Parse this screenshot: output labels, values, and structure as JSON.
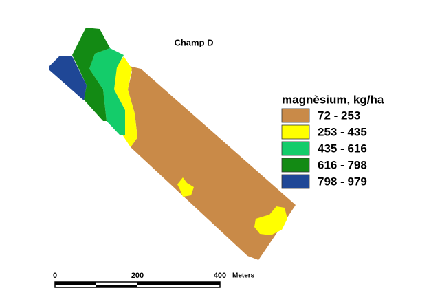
{
  "title": "Champ D",
  "legend": {
    "title": "magnèsium, kg/ha",
    "items": [
      {
        "label": "72 - 253",
        "color": "#c98a48"
      },
      {
        "label": "253 - 435",
        "color": "#ffff00"
      },
      {
        "label": "435 - 616",
        "color": "#14cc6a"
      },
      {
        "label": "616 - 798",
        "color": "#138a14"
      },
      {
        "label": "798 - 979",
        "color": "#1f4796"
      }
    ]
  },
  "scale_bar": {
    "labels": [
      "0",
      "200",
      "400"
    ],
    "unit": "Meters"
  }
}
